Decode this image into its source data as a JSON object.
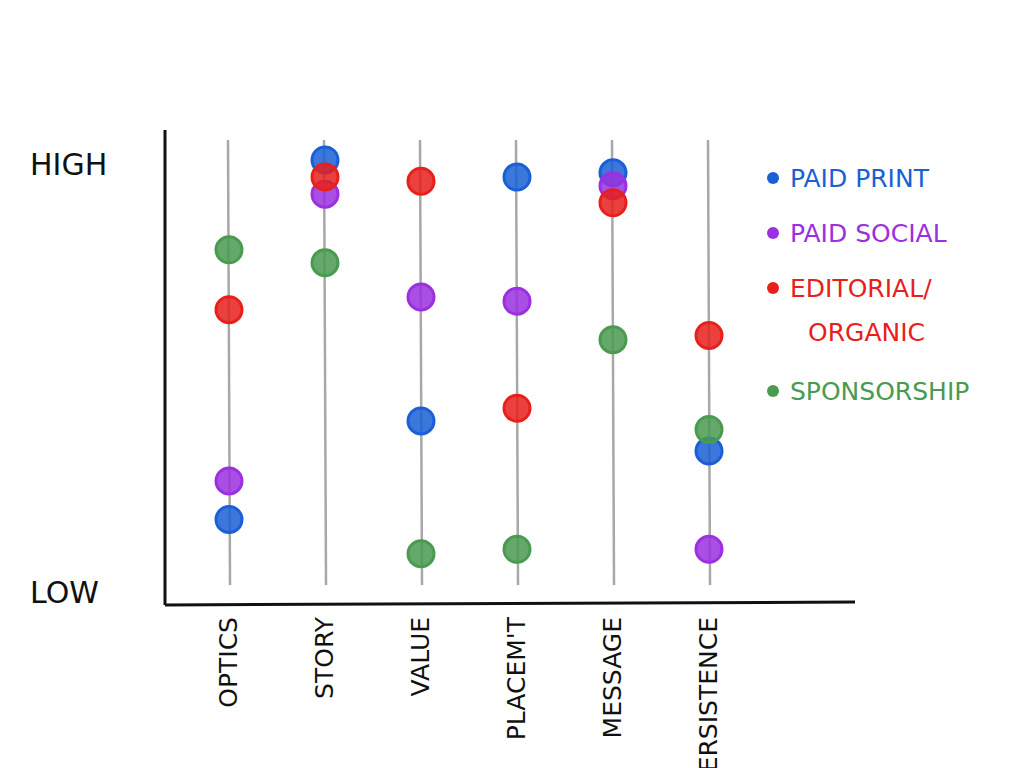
{
  "chart_data": {
    "type": "dot",
    "categories": [
      "OPTICS",
      "STORY",
      "VALUE",
      "PLACEM'T",
      "MESSAGE",
      "PERSISTENCE"
    ],
    "ylim": [
      -0.3,
      10.8
    ],
    "yticks": [
      {
        "value": 0,
        "label": "LOW"
      },
      {
        "value": 10,
        "label": "HIGH"
      }
    ],
    "legend": "right",
    "marker": "circle",
    "series": [
      {
        "name": "PAID PRINT",
        "color": "#1a5fd6",
        "values": [
          1.7,
          10.1,
          4.0,
          9.7,
          9.8,
          3.3
        ]
      },
      {
        "name": "PAID SOCIAL",
        "color": "#9b30e0",
        "values": [
          2.6,
          9.3,
          6.9,
          6.8,
          9.5,
          1.0
        ]
      },
      {
        "name": "EDITORIAL/ORGANIC",
        "color": "#e8201c",
        "values": [
          6.6,
          9.7,
          9.6,
          4.3,
          9.1,
          6.0
        ]
      },
      {
        "name": "SPONSORSHIP",
        "color": "#4a9a50",
        "values": [
          8.0,
          7.7,
          0.9,
          1.0,
          5.9,
          3.8
        ]
      }
    ]
  }
}
